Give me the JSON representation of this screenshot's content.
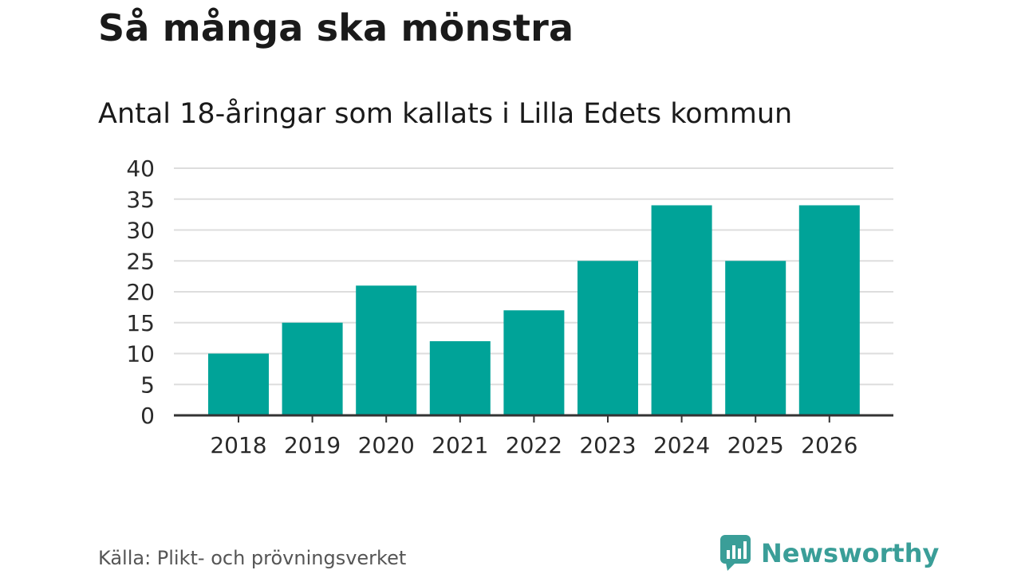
{
  "header": {
    "title": "Så många ska mönstra",
    "subtitle": "Antal 18-åringar som kallats i Lilla Edets kommun"
  },
  "footer": {
    "source": "Källa: Plikt- och prövningsverket",
    "brand": "Newsworthy",
    "brand_icon": "newsworthy-chart-bubble-icon"
  },
  "colors": {
    "bar": "#00a398",
    "grid": "#dddddd",
    "axis": "#333333",
    "brand": "#3a9e98"
  },
  "chart_data": {
    "type": "bar",
    "categories": [
      "2018",
      "2019",
      "2020",
      "2021",
      "2022",
      "2023",
      "2024",
      "2025",
      "2026"
    ],
    "values": [
      10,
      15,
      21,
      12,
      17,
      25,
      34,
      25,
      34
    ],
    "title": "Så många ska mönstra",
    "subtitle": "Antal 18-åringar som kallats i Lilla Edets kommun",
    "xlabel": "",
    "ylabel": "",
    "ylim": [
      0,
      40
    ],
    "yticks": [
      0,
      5,
      10,
      15,
      20,
      25,
      30,
      35,
      40
    ],
    "grid": true,
    "legend": "none"
  }
}
